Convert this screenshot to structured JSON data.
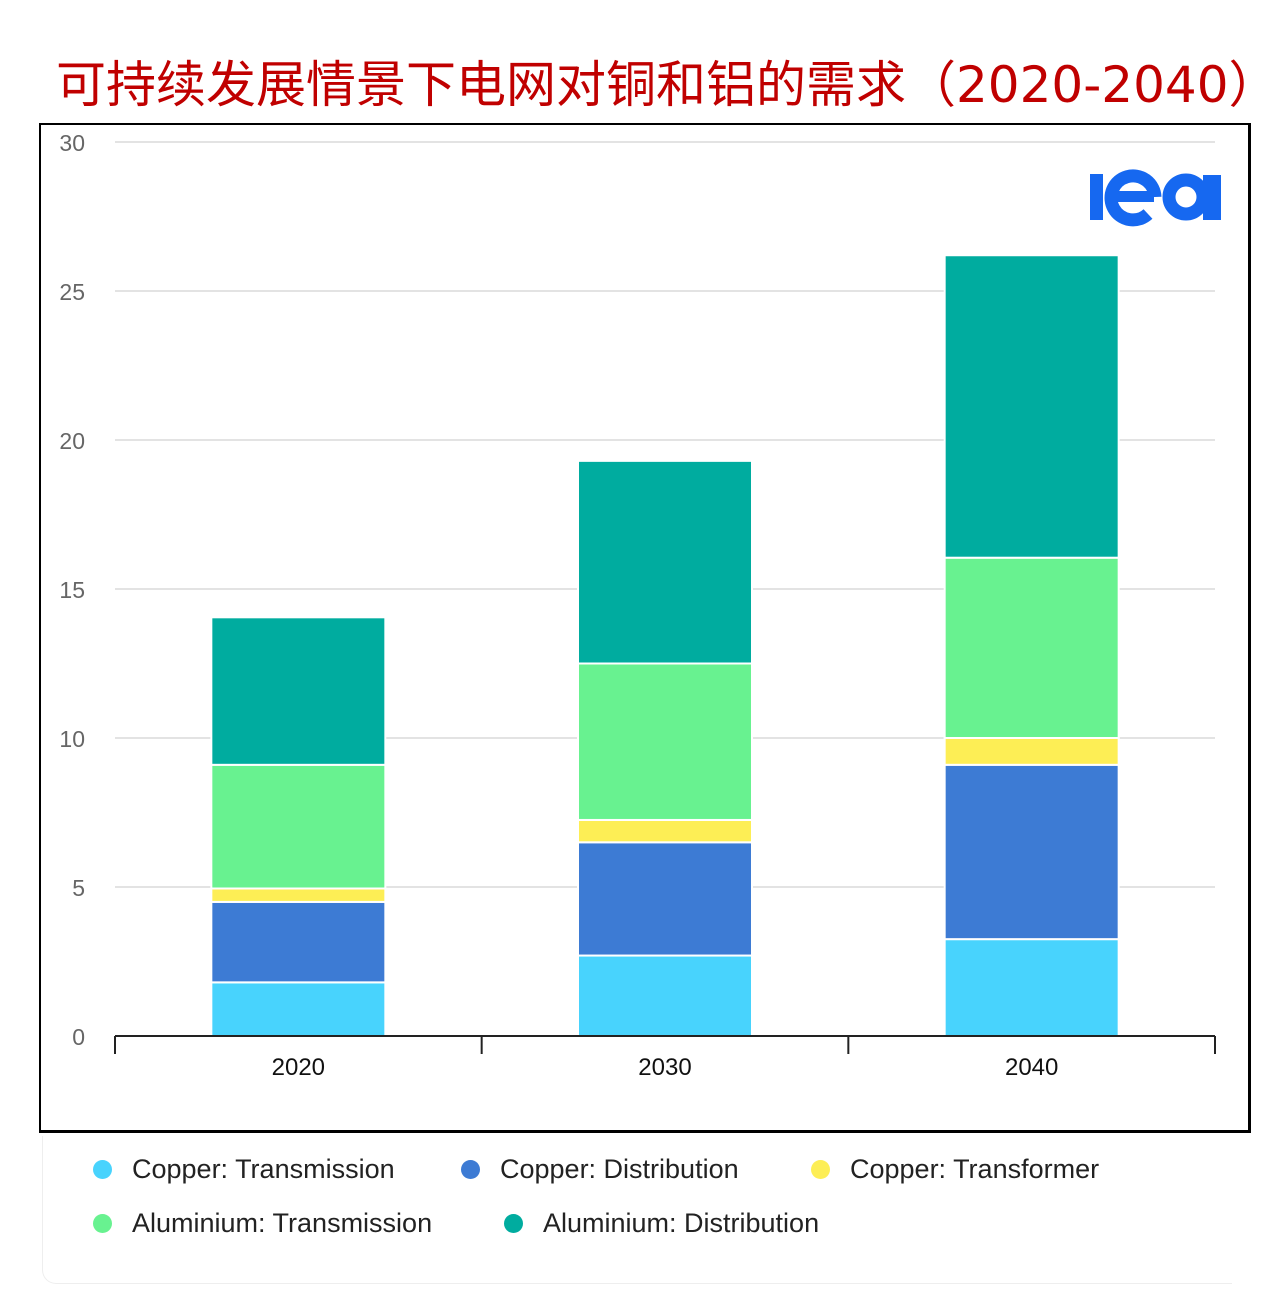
{
  "title": "可持续发展情景下电网对铜和铝的需求（2020-2040）",
  "logo_text": "iea",
  "colors": {
    "title": "#c00000",
    "logo": "#1668f0",
    "grid": "#e3e3e3",
    "axis": "#222222",
    "tick_text": "#666666"
  },
  "legend": {
    "items": [
      {
        "label": "Copper: Transmission",
        "color": "#48d3fd"
      },
      {
        "label": "Copper: Distribution",
        "color": "#3d7bd4"
      },
      {
        "label": "Copper: Transformer",
        "color": "#fdee55"
      },
      {
        "label": "Aluminium: Transmission",
        "color": "#68f290"
      },
      {
        "label": "Aluminium: Distribution",
        "color": "#00ac9f"
      }
    ]
  },
  "chart_data": {
    "type": "bar",
    "stacked": true,
    "title": "可持续发展情景下电网对铜和铝的需求（2020-2040）",
    "xlabel": "",
    "ylabel": "",
    "categories": [
      "2020",
      "2030",
      "2040"
    ],
    "ylim": [
      0,
      30
    ],
    "yticks": [
      0,
      5,
      10,
      15,
      20,
      25,
      30
    ],
    "grid": true,
    "legend_position": "bottom",
    "series": [
      {
        "name": "Copper: Transmission",
        "color": "#48d3fd",
        "values": [
          1.8,
          2.7,
          3.25
        ]
      },
      {
        "name": "Copper: Distribution",
        "color": "#3d7bd4",
        "values": [
          2.7,
          3.8,
          5.85
        ]
      },
      {
        "name": "Copper: Transformer",
        "color": "#fdee55",
        "values": [
          0.45,
          0.75,
          0.9
        ]
      },
      {
        "name": "Aluminium: Transmission",
        "color": "#68f290",
        "values": [
          4.15,
          5.25,
          6.05
        ]
      },
      {
        "name": "Aluminium: Distribution",
        "color": "#00ac9f",
        "values": [
          4.95,
          6.8,
          10.15
        ]
      }
    ]
  }
}
